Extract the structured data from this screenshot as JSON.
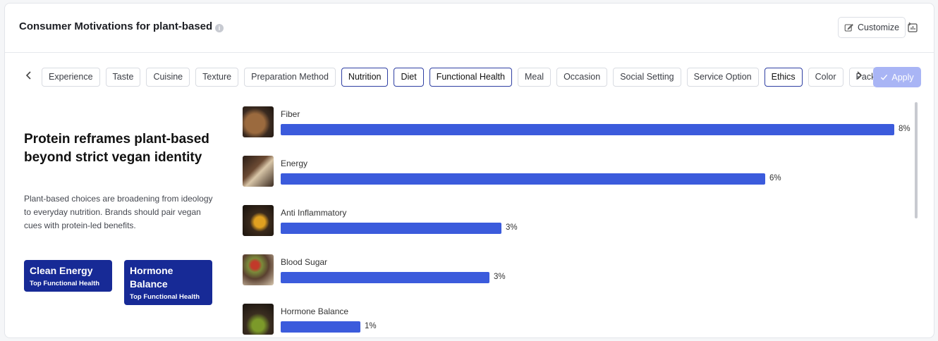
{
  "header": {
    "title": "Consumer Motivations for plant-based",
    "customize_label": "Customize"
  },
  "filters": {
    "chips": [
      {
        "label": "Experience",
        "active": false
      },
      {
        "label": "Taste",
        "active": false
      },
      {
        "label": "Cuisine",
        "active": false
      },
      {
        "label": "Texture",
        "active": false
      },
      {
        "label": "Preparation Method",
        "active": false
      },
      {
        "label": "Nutrition",
        "active": true
      },
      {
        "label": "Diet",
        "active": true
      },
      {
        "label": "Functional Health",
        "active": true
      },
      {
        "label": "Meal",
        "active": false
      },
      {
        "label": "Occasion",
        "active": false
      },
      {
        "label": "Social Setting",
        "active": false
      },
      {
        "label": "Service Option",
        "active": false
      },
      {
        "label": "Ethics",
        "active": true
      },
      {
        "label": "Color",
        "active": false
      },
      {
        "label": "Packaging",
        "active": false
      }
    ],
    "apply_label": "Apply"
  },
  "insight": {
    "headline": "Protein reframes plant-based beyond strict vegan identity",
    "description": "Plant-based choices are broadening from ideology to everyday nutrition. Brands should pair vegan cues with protein-led benefits.",
    "badges": [
      {
        "title": "Clean Energy",
        "subtitle": "Top Functional Health"
      },
      {
        "title": "Hormone Balance",
        "subtitle": "Top Functional Health"
      }
    ]
  },
  "chart_data": {
    "type": "bar",
    "orientation": "horizontal",
    "categories": [
      "Fiber",
      "Energy",
      "Anti Inflammatory",
      "Blood Sugar",
      "Hormone Balance"
    ],
    "values": [
      8,
      6,
      3,
      3,
      1
    ],
    "value_labels": [
      "8%",
      "6%",
      "3%",
      "3%",
      "1%"
    ],
    "bar_fractions": [
      1.0,
      0.79,
      0.36,
      0.34,
      0.13
    ],
    "bar_color": "#3b5bdc"
  },
  "colors": {
    "accent": "#3b5bdc",
    "badge": "#172a96",
    "apply_disabled": "#a9b5f5"
  }
}
